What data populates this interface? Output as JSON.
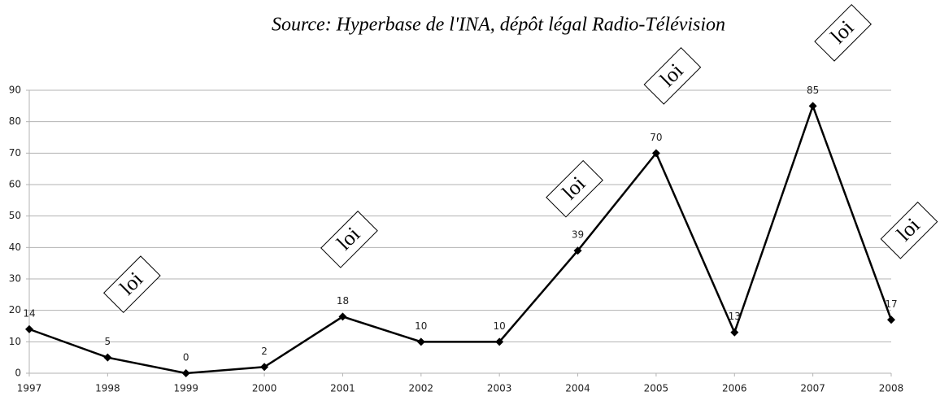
{
  "chart_data": {
    "type": "line",
    "title": "Source: Hyperbase de l'INA, dépôt légal Radio-Télévision",
    "categories": [
      "1997",
      "1998",
      "1999",
      "2000",
      "2001",
      "2002",
      "2003",
      "2004",
      "2005",
      "2006",
      "2007",
      "2008"
    ],
    "values": [
      14,
      5,
      0,
      2,
      18,
      10,
      10,
      39,
      70,
      13,
      85,
      17
    ],
    "color": "#000000",
    "ylim": [
      0,
      90
    ],
    "yticks": [
      0,
      10,
      20,
      30,
      40,
      50,
      60,
      70,
      80,
      90
    ],
    "grid": true,
    "annotations": [
      {
        "text": "loi",
        "at": "1998"
      },
      {
        "text": "loi",
        "at": "2001"
      },
      {
        "text": "loi",
        "at": "2004"
      },
      {
        "text": "loi",
        "at": "2005"
      },
      {
        "text": "loi",
        "at": "2007"
      },
      {
        "text": "loi",
        "at": "2008"
      }
    ]
  }
}
